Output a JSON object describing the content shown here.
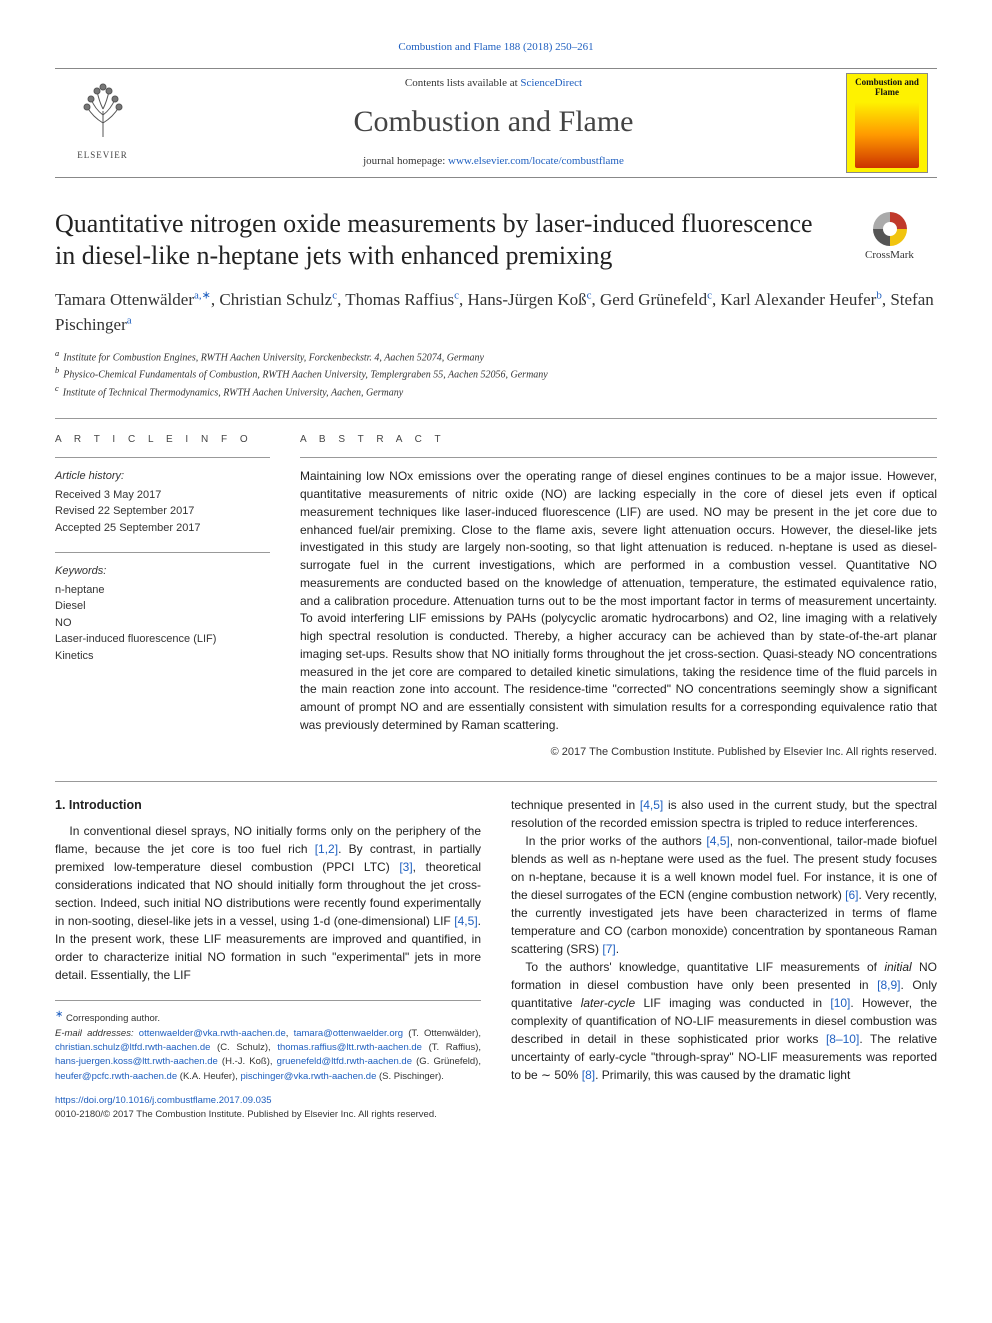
{
  "citation": "Combustion and Flame 188 (2018) 250–261",
  "banner": {
    "contents_prefix": "Contents lists available at ",
    "contents_link": "ScienceDirect",
    "journal": "Combustion and Flame",
    "homepage_prefix": "journal homepage: ",
    "homepage_link": "www.elsevier.com/locate/combustflame",
    "publisher": "ELSEVIER",
    "cover_title": "Combustion and Flame"
  },
  "crossmark": "CrossMark",
  "title": "Quantitative nitrogen oxide measurements by laser-induced fluorescence in diesel-like n-heptane jets with enhanced premixing",
  "authors_html": "Tamara Ottenwälder|a,*|, Christian Schulz|c|, Thomas Raffius|c|, Hans-Jürgen Koß|c|, Gerd Grünefeld|c|, Karl Alexander Heufer|b|, Stefan Pischinger|a|",
  "affiliations": [
    {
      "label": "a",
      "text": "Institute for Combustion Engines, RWTH Aachen University, Forckenbeckstr. 4, Aachen 52074, Germany"
    },
    {
      "label": "b",
      "text": "Physico-Chemical Fundamentals of Combustion, RWTH Aachen University, Templergraben 55, Aachen 52056, Germany"
    },
    {
      "label": "c",
      "text": "Institute of Technical Thermodynamics, RWTH Aachen University, Aachen, Germany"
    }
  ],
  "article_info": {
    "label": "A R T I C L E   I N F O",
    "history_head": "Article history:",
    "history": [
      "Received 3 May 2017",
      "Revised 22 September 2017",
      "Accepted 25 September 2017"
    ],
    "keywords_head": "Keywords:",
    "keywords": [
      "n-heptane",
      "Diesel",
      "NO",
      "Laser-induced fluorescence (LIF)",
      "Kinetics"
    ]
  },
  "abstract": {
    "label": "A B S T R A C T",
    "text": "Maintaining low NOx emissions over the operating range of diesel engines continues to be a major issue. However, quantitative measurements of nitric oxide (NO) are lacking especially in the core of diesel jets even if optical measurement techniques like laser-induced fluorescence (LIF) are used. NO may be present in the jet core due to enhanced fuel/air premixing. Close to the flame axis, severe light attenuation occurs. However, the diesel-like jets investigated in this study are largely non-sooting, so that light attenuation is reduced. n-heptane is used as diesel-surrogate fuel in the current investigations, which are performed in a combustion vessel. Quantitative NO measurements are conducted based on the knowledge of attenuation, temperature, the estimated equivalence ratio, and a calibration procedure. Attenuation turns out to be the most important factor in terms of measurement uncertainty. To avoid interfering LIF emissions by PAHs (polycyclic aromatic hydrocarbons) and O2, line imaging with a relatively high spectral resolution is conducted. Thereby, a higher accuracy can be achieved than by state-of-the-art planar imaging set-ups. Results show that NO initially forms throughout the jet cross-section. Quasi-steady NO concentrations measured in the jet core are compared to detailed kinetic simulations, taking the residence time of the fluid parcels in the main reaction zone into account. The residence-time \"corrected\" NO concentrations seemingly show a significant amount of prompt NO and are essentially consistent with simulation results for a corresponding equivalence ratio that was previously determined by Raman scattering.",
    "copyright": "© 2017 The Combustion Institute. Published by Elsevier Inc. All rights reserved."
  },
  "body": {
    "heading": "1. Introduction",
    "p1_a": "In conventional diesel sprays, NO initially forms only on the periphery of the flame, because the jet core is too fuel rich ",
    "p1_ref1": "[1,2]",
    "p1_b": ". By contrast, in partially premixed low-temperature diesel combustion (PPCI LTC) ",
    "p1_ref2": "[3]",
    "p1_c": ", theoretical considerations indicated that NO should initially form throughout the jet cross-section. Indeed, such initial NO distributions were recently found experimentally in non-sooting, diesel-like jets in a vessel, using 1-d (one-dimensional) LIF ",
    "p1_ref3": "[4,5]",
    "p1_d": ". In the present work, these LIF measurements are improved and quantified, in order to characterize initial NO formation in such \"experimental\" jets in more detail. Essentially, the LIF ",
    "p1_e": "technique presented in ",
    "p1_ref4": "[4,5]",
    "p1_f": " is also used in the current study, but the spectral resolution of the recorded emission spectra is tripled to reduce interferences.",
    "p2_a": "In the prior works of the authors ",
    "p2_ref1": "[4,5]",
    "p2_b": ", non-conventional, tailor-made biofuel blends as well as n-heptane were used as the fuel. The present study focuses on n-heptane, because it is a well known model fuel. For instance, it is one of the diesel surrogates of the ECN (engine combustion network) ",
    "p2_ref2": "[6]",
    "p2_c": ". Very recently, the currently investigated jets have been characterized in terms of flame temperature and CO (carbon monoxide) concentration by spontaneous Raman scattering (SRS) ",
    "p2_ref3": "[7]",
    "p2_d": ".",
    "p3_a": "To the authors' knowledge, quantitative LIF measurements of ",
    "p3_i1": "initial",
    "p3_b": " NO formation in diesel combustion have only been presented in ",
    "p3_ref1": "[8,9]",
    "p3_c": ". Only quantitative ",
    "p3_i2": "later-cycle",
    "p3_d": " LIF imaging was conducted in ",
    "p3_ref2": "[10]",
    "p3_e": ". However, the complexity of quantification of NO-LIF measurements in diesel combustion was described in detail in these sophisticated prior works ",
    "p3_ref3": "[8–10]",
    "p3_f": ". The relative uncertainty of early-cycle \"through-spray\" NO-LIF measurements was reported to be ∼ 50% ",
    "p3_ref4": "[8]",
    "p3_g": ". Primarily, this was caused by the dramatic light"
  },
  "footnotes": {
    "corr": "Corresponding author.",
    "email_label": "E-mail addresses:",
    "emails": [
      {
        "addr": "ottenwaelder@vka.rwth-aachen.de",
        "sep": ", "
      },
      {
        "addr": "tamara@ottenwaelder.org",
        "sep": " (T. Ottenwälder), "
      },
      {
        "addr": "christian.schulz@ltfd.rwth-aachen.de",
        "sep": " (C. Schulz), "
      },
      {
        "addr": "thomas.raffius@ltt.rwth-aachen.de",
        "sep": " (T. Raffius), "
      },
      {
        "addr": "hans-juergen.koss@ltt.rwth-aachen.de",
        "sep": " (H.-J. Koß), "
      },
      {
        "addr": "gruenefeld@ltfd.rwth-aachen.de",
        "sep": " (G. Grünefeld), "
      },
      {
        "addr": "heufer@pcfc.rwth-aachen.de",
        "sep": " (K.A. Heufer), "
      },
      {
        "addr": "pischinger@vka.rwth-aachen.de",
        "sep": " (S. Pischinger)."
      }
    ]
  },
  "footer": {
    "doi": "https://doi.org/10.1016/j.combustflame.2017.09.035",
    "issn_line": "0010-2180/© 2017 The Combustion Institute. Published by Elsevier Inc. All rights reserved."
  },
  "colors": {
    "link": "#2060c0",
    "text": "#1a1a1a",
    "rule": "#999999",
    "cover_bg": "#fef200"
  }
}
